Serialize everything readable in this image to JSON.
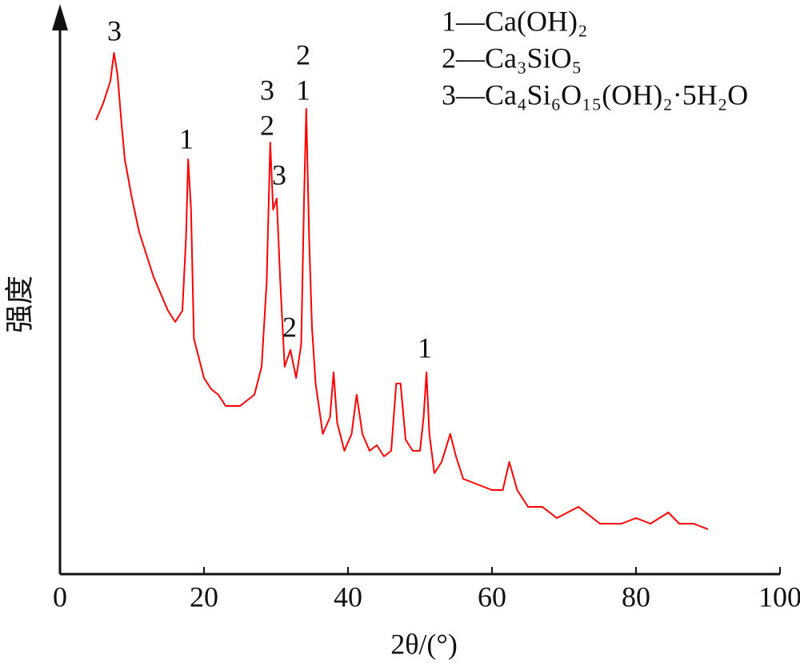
{
  "chart_data": {
    "type": "line",
    "x_label": "2θ/(°)",
    "y_label": "强度",
    "color": "#ff0000",
    "xlim": [
      0,
      100
    ],
    "xticks": [
      0,
      20,
      40,
      60,
      80,
      100
    ],
    "ylim": [
      0,
      100
    ],
    "legend_notes": [
      "1—Ca(OH)₂",
      "2—Ca₃SiO₅",
      "3—Ca₄Si₆O₁₅(OH)₂·5H₂O"
    ],
    "annotations": [
      "3",
      "1",
      "3",
      "2",
      "3",
      "2",
      "2",
      "1",
      "1"
    ],
    "x": [
      5,
      6,
      7,
      7.5,
      8,
      8.5,
      9,
      10,
      11,
      12,
      13,
      14,
      15,
      16,
      17,
      17.5,
      17.8,
      18.2,
      18.6,
      19,
      20,
      21,
      22,
      23,
      24,
      25,
      26,
      27,
      28,
      28.7,
      29.2,
      29.6,
      30.1,
      30.6,
      31.2,
      32,
      32.8,
      33.5,
      33.9,
      34.2,
      34.6,
      35,
      35.5,
      36.5,
      37.5,
      38,
      38.5,
      39.5,
      40.5,
      41.2,
      42,
      43,
      44,
      45,
      46,
      46.7,
      47.3,
      48,
      49,
      50,
      50.5,
      50.9,
      51.3,
      52,
      53,
      54.2,
      55,
      56,
      58,
      60,
      61.5,
      62.4,
      63.5,
      65,
      67,
      69,
      72,
      75,
      78,
      80,
      82,
      84.5,
      86,
      88,
      90
    ],
    "values": [
      81,
      84,
      88,
      93,
      89,
      81,
      74,
      67,
      61,
      57,
      53,
      50,
      47,
      45,
      47,
      60,
      74,
      65,
      42,
      40,
      35,
      33,
      32,
      30,
      30,
      30,
      31,
      32,
      37,
      52,
      77,
      65,
      67,
      52,
      37,
      40,
      35,
      41,
      67,
      83,
      60,
      44,
      34,
      25,
      28,
      36,
      27,
      22,
      25,
      32,
      25,
      22,
      23,
      21,
      22,
      34,
      34,
      24,
      22,
      22,
      28,
      36,
      25,
      18,
      20,
      25,
      21,
      17,
      16,
      15,
      15,
      20,
      15,
      12,
      12,
      10,
      12,
      9,
      9,
      10,
      9,
      11,
      9,
      9,
      8
    ]
  }
}
